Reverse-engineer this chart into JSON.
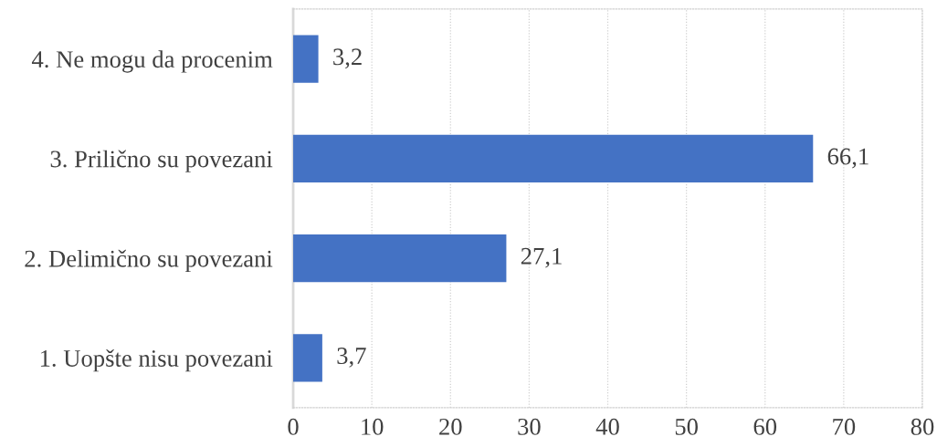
{
  "chart_data": {
    "type": "bar",
    "orientation": "horizontal",
    "categories": [
      "4. Ne mogu da procenim",
      "3. Prilično su povezani",
      "2. Delimično su povezani",
      "1. Uopšte nisu povezani"
    ],
    "values": [
      3.2,
      66.1,
      27.1,
      3.7
    ],
    "value_labels": [
      "3,2",
      "66,1",
      "27,1",
      "3,7"
    ],
    "color": "#4472c4",
    "xlim": [
      0,
      80
    ],
    "xticks": [
      0,
      10,
      20,
      30,
      40,
      50,
      60,
      70,
      80
    ],
    "grid": "x"
  }
}
